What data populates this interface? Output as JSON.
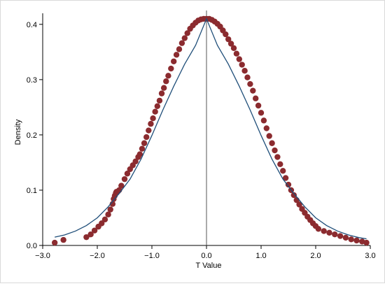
{
  "chart_data": {
    "type": "scatter",
    "title": "",
    "xlabel": "T Value",
    "ylabel": "Density",
    "xlim": [
      -3.0,
      3.0
    ],
    "ylim": [
      0.0,
      0.42
    ],
    "x_ticks": [
      -3.0,
      -2.0,
      -1.0,
      0.0,
      1.0,
      2.0,
      3.0
    ],
    "x_tick_labels": [
      "−3.0",
      "−2.0",
      "−1.0",
      "0.0",
      "1.0",
      "2.0",
      "3.0"
    ],
    "y_ticks": [
      0.0,
      0.1,
      0.2,
      0.3,
      0.4
    ],
    "y_tick_labels": [
      "0.0",
      "0.1",
      "0.2",
      "0.3",
      "0.4"
    ],
    "reference_line_x": 0.0,
    "grid": false,
    "legend": "none",
    "colors": {
      "points": "#8b2b2f",
      "curve": "#1f4e79",
      "axis": "#000000",
      "reference_line": "#555555"
    },
    "series": [
      {
        "kind": "points",
        "x": [
          -2.78,
          -2.62,
          -2.2,
          -2.12,
          -2.05,
          -1.98,
          -1.92,
          -1.86,
          -1.8,
          -1.76,
          -1.72,
          -1.7,
          -1.68,
          -1.66,
          -1.65,
          -1.64,
          -1.62,
          -1.6,
          -1.56,
          -1.5,
          -1.45,
          -1.4,
          -1.35,
          -1.3,
          -1.25,
          -1.22,
          -1.18,
          -1.14,
          -1.1,
          -1.06,
          -1.02,
          -0.98,
          -0.94,
          -0.9,
          -0.86,
          -0.82,
          -0.78,
          -0.74,
          -0.7,
          -0.65,
          -0.6,
          -0.55,
          -0.5,
          -0.45,
          -0.4,
          -0.35,
          -0.3,
          -0.25,
          -0.2,
          -0.15,
          -0.1,
          -0.05,
          0.0,
          0.05,
          0.1,
          0.15,
          0.2,
          0.25,
          0.3,
          0.35,
          0.4,
          0.45,
          0.5,
          0.55,
          0.6,
          0.65,
          0.7,
          0.75,
          0.8,
          0.85,
          0.9,
          0.95,
          1.0,
          1.05,
          1.1,
          1.15,
          1.2,
          1.25,
          1.3,
          1.35,
          1.4,
          1.45,
          1.5,
          1.55,
          1.6,
          1.65,
          1.7,
          1.75,
          1.8,
          1.85,
          1.9,
          1.95,
          2.0,
          2.05,
          2.15,
          2.25,
          2.35,
          2.45,
          2.55,
          2.65,
          2.75,
          2.85,
          2.93
        ],
        "y": [
          0.005,
          0.01,
          0.015,
          0.02,
          0.027,
          0.034,
          0.04,
          0.047,
          0.056,
          0.065,
          0.075,
          0.084,
          0.09,
          0.095,
          0.097,
          0.096,
          0.098,
          0.1,
          0.108,
          0.12,
          0.13,
          0.138,
          0.145,
          0.152,
          0.16,
          0.165,
          0.175,
          0.185,
          0.196,
          0.208,
          0.22,
          0.23,
          0.242,
          0.252,
          0.262,
          0.275,
          0.285,
          0.297,
          0.307,
          0.32,
          0.333,
          0.345,
          0.355,
          0.366,
          0.375,
          0.384,
          0.392,
          0.398,
          0.403,
          0.407,
          0.409,
          0.41,
          0.41,
          0.41,
          0.408,
          0.405,
          0.401,
          0.396,
          0.389,
          0.382,
          0.373,
          0.365,
          0.357,
          0.347,
          0.337,
          0.327,
          0.316,
          0.304,
          0.292,
          0.28,
          0.266,
          0.253,
          0.24,
          0.226,
          0.212,
          0.198,
          0.185,
          0.172,
          0.16,
          0.147,
          0.135,
          0.122,
          0.11,
          0.1,
          0.091,
          0.082,
          0.074,
          0.066,
          0.059,
          0.052,
          0.046,
          0.04,
          0.035,
          0.03,
          0.026,
          0.023,
          0.02,
          0.017,
          0.014,
          0.011,
          0.009,
          0.007,
          0.005
        ]
      },
      {
        "kind": "curve",
        "x": [
          -2.78,
          -2.6,
          -2.4,
          -2.2,
          -2.0,
          -1.8,
          -1.6,
          -1.4,
          -1.2,
          -1.0,
          -0.8,
          -0.6,
          -0.4,
          -0.2,
          0.0,
          0.2,
          0.4,
          0.6,
          0.8,
          1.0,
          1.2,
          1.4,
          1.6,
          1.8,
          2.0,
          2.2,
          2.4,
          2.6,
          2.8,
          2.93
        ],
        "y": [
          0.015,
          0.019,
          0.026,
          0.036,
          0.05,
          0.07,
          0.094,
          0.12,
          0.156,
          0.199,
          0.245,
          0.288,
          0.328,
          0.362,
          0.41,
          0.362,
          0.328,
          0.288,
          0.245,
          0.199,
          0.156,
          0.12,
          0.094,
          0.07,
          0.05,
          0.036,
          0.026,
          0.019,
          0.014,
          0.012
        ]
      }
    ]
  }
}
